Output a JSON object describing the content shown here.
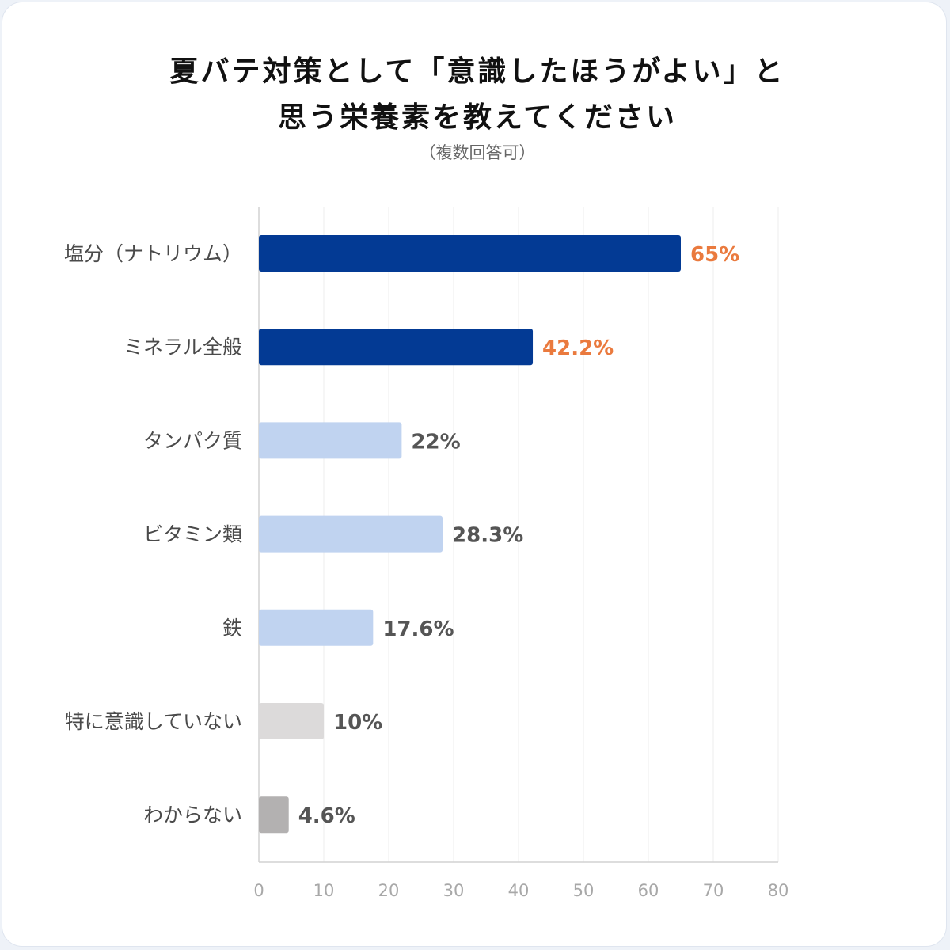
{
  "title_lines": [
    "夏バテ対策として「意識したほうがよい」と",
    "思う栄養素を教えてください"
  ],
  "subtitle": "（複数回答可）",
  "chart_data": {
    "type": "bar",
    "orientation": "horizontal",
    "categories": [
      "塩分（ナトリウム）",
      "ミネラル全般",
      "タンパク質",
      "ビタミン類",
      "鉄",
      "特に意識していない",
      "わからない"
    ],
    "values": [
      65,
      42.2,
      22,
      28.3,
      17.6,
      10,
      4.6
    ],
    "value_labels": [
      "65%",
      "42.2%",
      "22%",
      "28.3%",
      "17.6%",
      "10%",
      "4.6%"
    ],
    "bar_colors": [
      "#033a94",
      "#033a94",
      "#c0d3f0",
      "#c0d3f0",
      "#c0d3f0",
      "#dcdada",
      "#b3b1b1"
    ],
    "label_colors": [
      "#ea7a3e",
      "#ea7a3e",
      "#555555",
      "#555555",
      "#555555",
      "#555555",
      "#555555"
    ],
    "xlim": [
      0,
      80
    ],
    "xticks": [
      0,
      10,
      20,
      30,
      40,
      50,
      60,
      70,
      80
    ],
    "grid": true,
    "legend": "none"
  }
}
